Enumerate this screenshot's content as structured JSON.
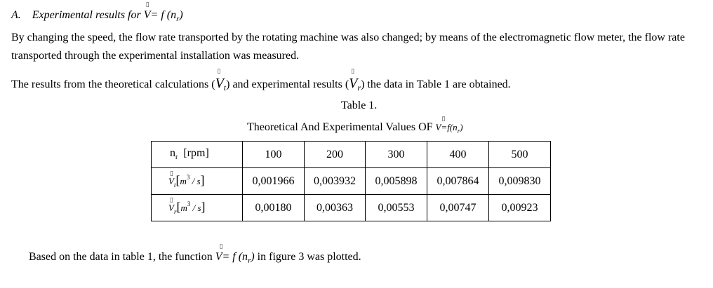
{
  "heading": {
    "number": "A.",
    "text": "Experimental results for",
    "formula_v": "V",
    "formula_rest": "= f (n",
    "formula_sub": "r",
    "formula_close": ")",
    "box_glyph": "▯"
  },
  "paragraph1": "By changing the speed, the flow rate transported by the rotating machine was also changed; by means of the electromagnetic flow meter, the flow rate transported through the experimental installation was measured.",
  "paragraph2": {
    "part1": "The results from the theoretical calculations (",
    "vt_v": "V",
    "vt_sub": "t",
    "part2": ") and experimental results (",
    "vr_v": "V",
    "vr_sub": "r",
    "part3": ") the data in Table 1 are obtained."
  },
  "table": {
    "caption_number": "Table 1.",
    "caption_title": "Theoretical And Experimental Values OF",
    "caption_formula": "V=f(n",
    "caption_formula_sub": "r",
    "caption_formula_close": ")",
    "header": {
      "label": "n",
      "label_sub": "r",
      "unit": "[rpm]",
      "values": [
        "100",
        "200",
        "300",
        "400",
        "500"
      ]
    },
    "rows": [
      {
        "v": "V",
        "sub": "t",
        "unit_open": "[",
        "unit_m": "m",
        "unit_exp": "3",
        "unit_s": " / s",
        "unit_close": "]",
        "values": [
          "0,001966",
          "0,003932",
          "0,005898",
          "0,007864",
          "0,009830"
        ]
      },
      {
        "v": "V",
        "sub": "r",
        "unit_open": "[",
        "unit_m": "m",
        "unit_exp": "3",
        "unit_s": " / s",
        "unit_close": "]",
        "values": [
          "0,00180",
          "0,00363",
          "0,00553",
          "0,00747",
          "0,00923"
        ]
      }
    ]
  },
  "footer": {
    "part1": "Based on the data in table 1, the function",
    "formula_v": "V",
    "formula_rest": "= f (n",
    "formula_sub": "r",
    "formula_close": ")",
    "part2": "in figure 3 was plotted."
  }
}
